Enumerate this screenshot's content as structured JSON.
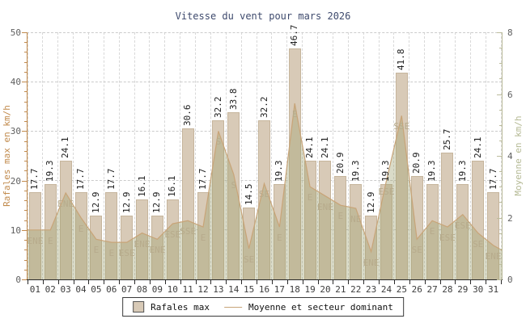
{
  "title": "Vitesse du vent pour mars 2026",
  "legend": {
    "bar_label": "Rafales max",
    "line_label": "Moyenne et secteur dominant"
  },
  "colors": {
    "bar_fill": "#d8cab7",
    "bar_border": "#c6b59c",
    "line": "#c8a478",
    "area_fill": "rgba(157,160,110,0.38)",
    "left_axis": "#c18a4c",
    "right_axis": "#bcbc9c",
    "right_axis_title": "#b5ba95",
    "title_text": "#3e4a6d",
    "tick_text": "#5f5f5f",
    "wind_label": "#b7ab8c"
  },
  "chart_data": {
    "type": "bar",
    "title": "Vitesse du vent pour mars 2026",
    "categories": [
      "01",
      "02",
      "03",
      "04",
      "05",
      "06",
      "07",
      "08",
      "09",
      "10",
      "11",
      "12",
      "13",
      "14",
      "15",
      "16",
      "17",
      "18",
      "19",
      "20",
      "21",
      "22",
      "23",
      "24",
      "25",
      "26",
      "27",
      "28",
      "29",
      "30",
      "31"
    ],
    "series": [
      {
        "name": "Rafales max",
        "type": "bar",
        "axis": "left",
        "values": [
          17.7,
          19.3,
          24.1,
          17.7,
          12.9,
          17.7,
          12.9,
          16.1,
          12.9,
          16.1,
          30.6,
          17.7,
          32.2,
          33.8,
          14.5,
          32.2,
          19.3,
          46.7,
          24.1,
          24.1,
          20.9,
          19.3,
          12.9,
          19.3,
          41.8,
          20.9,
          19.3,
          25.7,
          19.3,
          24.1,
          17.7
        ]
      },
      {
        "name": "Moyenne",
        "type": "line",
        "axis": "right",
        "values": [
          1.6,
          1.6,
          2.8,
          2.0,
          1.3,
          1.2,
          1.2,
          1.5,
          1.3,
          1.8,
          1.9,
          1.7,
          4.8,
          3.4,
          1.0,
          3.1,
          1.7,
          5.7,
          3.0,
          2.7,
          2.4,
          2.3,
          0.9,
          3.2,
          5.3,
          1.3,
          1.9,
          1.7,
          2.1,
          1.5,
          1.1
        ]
      },
      {
        "name": "Secteur dominant",
        "type": "labels",
        "values": [
          "ENE",
          "E",
          "ENE",
          "E",
          "E",
          "E",
          "ESE",
          "ENE",
          "ENE",
          "ESE",
          "SSE",
          "E",
          "S",
          "S",
          "SE",
          "SE",
          "E",
          "E",
          "E",
          "ENE",
          "E",
          "NE",
          "ENE",
          "ESE",
          "SSE",
          "SE",
          "E",
          "ESE",
          "ESE",
          "SE",
          "ENE"
        ]
      }
    ],
    "left_axis": {
      "label": "Rafales max en km/h",
      "min": 0,
      "max": 50,
      "ticks": [
        0,
        10,
        20,
        30,
        40,
        50
      ],
      "minor_step": 2
    },
    "right_axis": {
      "label": "Moyenne en km/h",
      "min": 0,
      "max": 8,
      "ticks": [
        0,
        2,
        4,
        6,
        8
      ],
      "minor_step": 0.5
    },
    "grid": true,
    "legend_position": "bottom",
    "line_edge_values": {
      "left": 1.6,
      "right": 0.95
    }
  }
}
